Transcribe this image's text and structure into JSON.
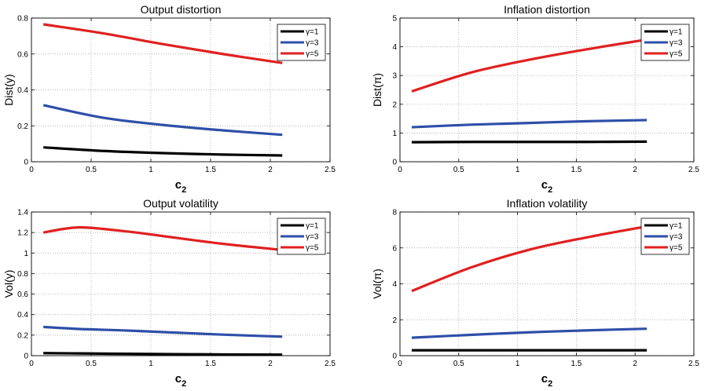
{
  "chart_data": [
    {
      "type": "line",
      "title": "Output distortion",
      "ylabel": "Dist(y)",
      "xlabel": "c",
      "xlabel_sub": "2",
      "xlim": [
        0,
        2.5
      ],
      "ylim": [
        0,
        0.8
      ],
      "xticks": [
        "0",
        "0.5",
        "1",
        "1.5",
        "2",
        "2.5"
      ],
      "yticks": [
        "0",
        "0.2",
        "0.4",
        "0.6",
        "0.8"
      ],
      "grid": true,
      "legend_position": "top-right",
      "x": [
        0.1,
        0.6,
        1.1,
        1.6,
        2.1
      ],
      "series": [
        {
          "name": "γ=1",
          "color": "#000000",
          "values": [
            0.08,
            0.06,
            0.048,
            0.04,
            0.035
          ]
        },
        {
          "name": "γ=3",
          "color": "#2e4fa8",
          "values": [
            0.315,
            0.245,
            0.205,
            0.175,
            0.15
          ]
        },
        {
          "name": "γ=5",
          "color": "#e02020",
          "values": [
            0.765,
            0.715,
            0.655,
            0.6,
            0.55
          ]
        }
      ]
    },
    {
      "type": "line",
      "title": "Inflation distortion",
      "ylabel": "Dist(π)",
      "xlabel": "c",
      "xlabel_sub": "2",
      "xlim": [
        0,
        2.5
      ],
      "ylim": [
        0,
        5
      ],
      "xticks": [
        "0",
        "0.5",
        "1",
        "1.5",
        "2",
        "2.5"
      ],
      "yticks": [
        "0",
        "1",
        "2",
        "3",
        "4",
        "5"
      ],
      "grid": true,
      "legend_position": "top-right",
      "x": [
        0.1,
        0.6,
        1.1,
        1.6,
        2.1
      ],
      "series": [
        {
          "name": "γ=1",
          "color": "#000000",
          "values": [
            0.68,
            0.69,
            0.69,
            0.69,
            0.7
          ]
        },
        {
          "name": "γ=3",
          "color": "#2e4fa8",
          "values": [
            1.2,
            1.29,
            1.35,
            1.41,
            1.45
          ]
        },
        {
          "name": "γ=5",
          "color": "#e02020",
          "values": [
            2.45,
            3.1,
            3.55,
            3.92,
            4.25
          ]
        }
      ]
    },
    {
      "type": "line",
      "title": "Output volatility",
      "ylabel": "Vol(y)",
      "xlabel": "c",
      "xlabel_sub": "2",
      "xlim": [
        0,
        2.5
      ],
      "ylim": [
        0,
        1.4
      ],
      "xticks": [
        "0",
        "0.5",
        "1",
        "1.5",
        "2",
        "2.5"
      ],
      "yticks": [
        "0",
        "0.2",
        "0.4",
        "0.6",
        "0.8",
        "1",
        "1.2",
        "1.4"
      ],
      "grid": true,
      "legend_position": "top-right",
      "x": [
        0.1,
        0.4,
        0.8,
        1.2,
        1.6,
        2.1
      ],
      "series": [
        {
          "name": "γ=1",
          "color": "#000000",
          "values": [
            0.025,
            0.022,
            0.018,
            0.015,
            0.012,
            0.01
          ]
        },
        {
          "name": "γ=3",
          "color": "#2e4fa8",
          "values": [
            0.28,
            0.26,
            0.245,
            0.225,
            0.205,
            0.185
          ]
        },
        {
          "name": "γ=5",
          "color": "#e02020",
          "values": [
            1.2,
            1.25,
            1.21,
            1.15,
            1.09,
            1.03
          ]
        }
      ]
    },
    {
      "type": "line",
      "title": "Inflation volatility",
      "ylabel": "Vol(π)",
      "xlabel": "c",
      "xlabel_sub": "2",
      "xlim": [
        0,
        2.5
      ],
      "ylim": [
        0,
        8
      ],
      "xticks": [
        "0",
        "0.5",
        "1",
        "1.5",
        "2",
        "2.5"
      ],
      "yticks": [
        "0",
        "2",
        "4",
        "6",
        "8"
      ],
      "grid": true,
      "legend_position": "top-right",
      "x": [
        0.1,
        0.6,
        1.1,
        1.6,
        2.1
      ],
      "series": [
        {
          "name": "γ=1",
          "color": "#000000",
          "values": [
            0.3,
            0.3,
            0.3,
            0.3,
            0.3
          ]
        },
        {
          "name": "γ=3",
          "color": "#2e4fa8",
          "values": [
            1.0,
            1.16,
            1.3,
            1.41,
            1.5
          ]
        },
        {
          "name": "γ=5",
          "color": "#e02020",
          "values": [
            3.6,
            4.9,
            5.9,
            6.6,
            7.2
          ]
        }
      ]
    }
  ]
}
